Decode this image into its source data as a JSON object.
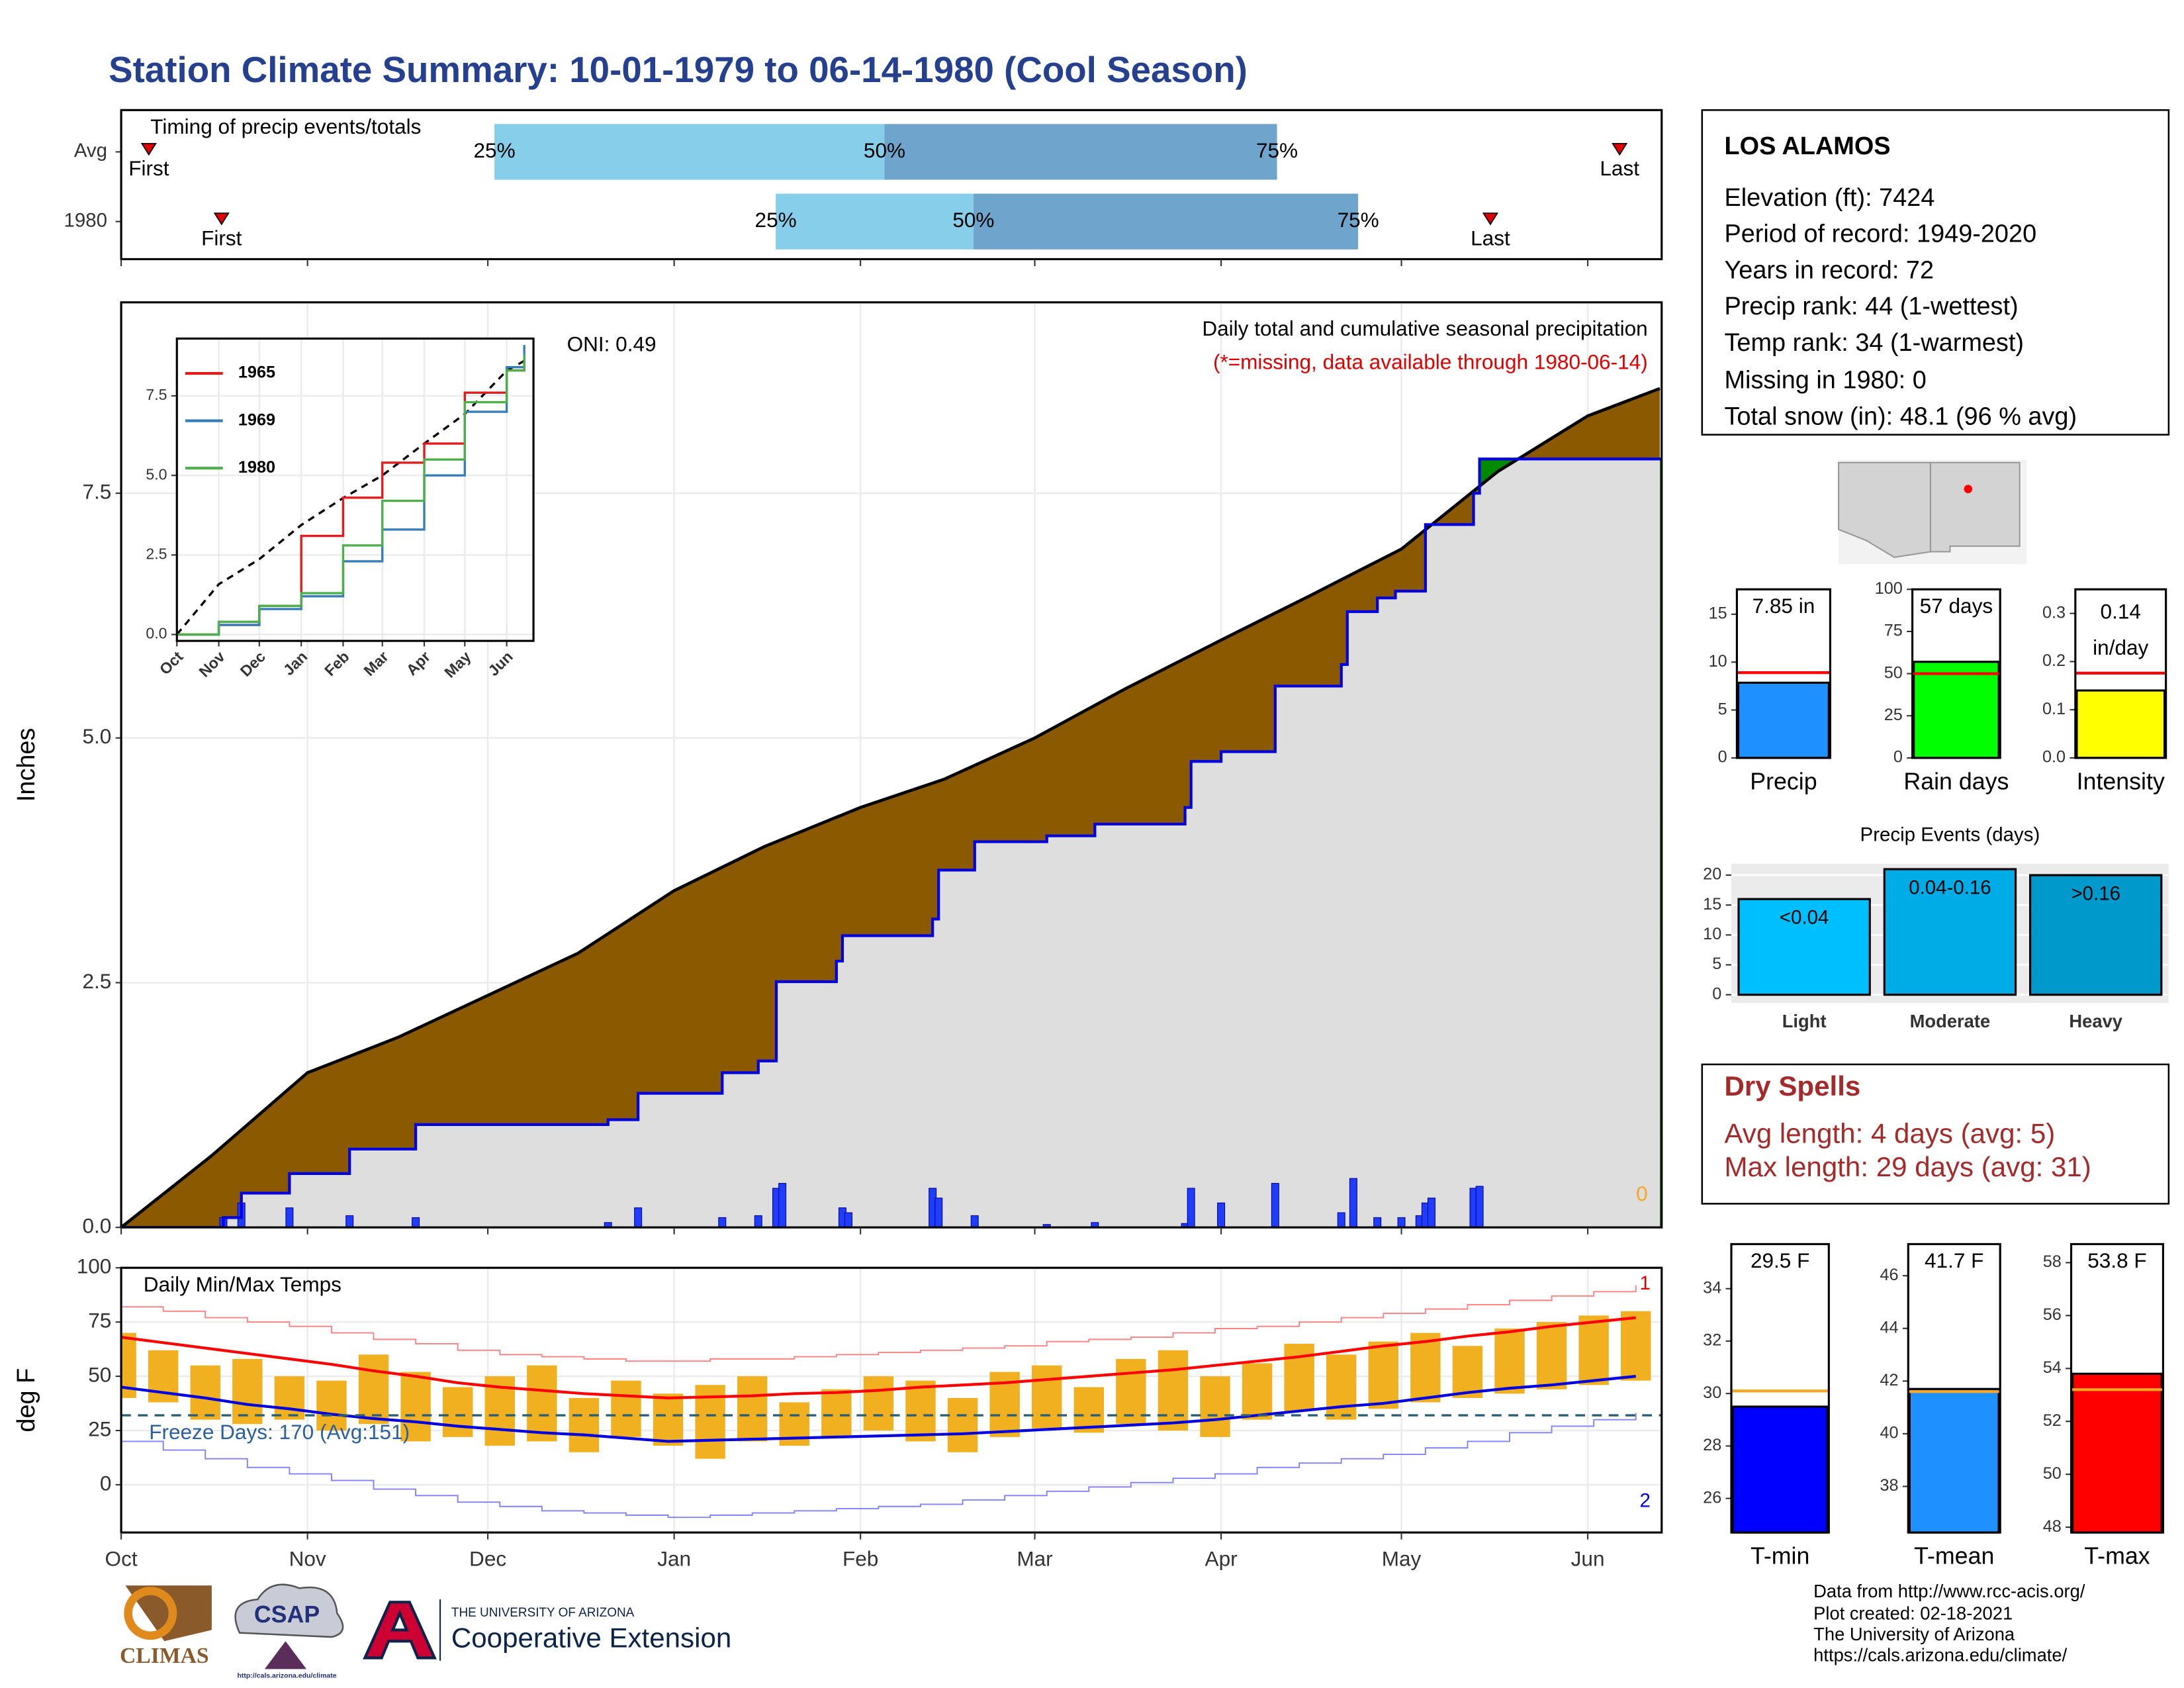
{
  "title": "Station Climate Summary: 10-01-1979 to 06-14-1980 (Cool Season)",
  "chart_data": [
    {
      "type": "timing",
      "title": "Timing of precip events/totals",
      "xlim": [
        0,
        256.3
      ],
      "xticks": [
        0,
        31,
        61,
        92,
        123,
        152,
        183,
        213,
        244
      ],
      "labels": {
        "q25": "25%",
        "q50": "50%",
        "q75": "75%",
        "first": "First",
        "last": "Last"
      },
      "colors": [
        "#87ceeb",
        "#6fa5cc"
      ],
      "marker_color": "#e00000",
      "rows": [
        {
          "name": "Avg",
          "first": 4.6,
          "q25": 62.1,
          "q50": 127,
          "q75": 192.3,
          "last": 249.3
        },
        {
          "name": "1980",
          "first": 16.7,
          "q25": 108.9,
          "q50": 141.8,
          "q75": 205.8,
          "last": 227.8
        }
      ]
    },
    {
      "type": "area",
      "title": "Daily total and cumulative seasonal precipitation",
      "subtitle": "(*=missing, data available through 1980-06-14)",
      "annotation": "ONI: 0.49",
      "corner_label": "0",
      "ylabel": "Inches",
      "grid": true,
      "xlim": [
        0,
        256.3
      ],
      "xticks": [
        0,
        31,
        61,
        92,
        123,
        152,
        183,
        213,
        244
      ],
      "ylim": [
        0,
        9.45
      ],
      "yticks": [
        {
          "value": 0,
          "label": "0.0"
        },
        {
          "value": 2.5,
          "label": "2.5"
        },
        {
          "value": 5,
          "label": "5.0"
        },
        {
          "value": 7.5,
          "label": "7.5"
        }
      ],
      "fill_colors": {
        "below": "#dedede",
        "deficit": "#8b5a00",
        "surplus": "#008a00"
      },
      "series": [
        {
          "color": "#000000",
          "step": false,
          "x": [
            0,
            15,
            31,
            46,
            61,
            76,
            92,
            107,
            123,
            137,
            152,
            167,
            183,
            198,
            213,
            229,
            244,
            256
          ],
          "values": [
            0,
            0.73,
            1.58,
            1.94,
            2.37,
            2.8,
            3.44,
            3.89,
            4.29,
            4.58,
            5.0,
            5.5,
            6.0,
            6.46,
            6.93,
            7.72,
            8.29,
            8.57
          ]
        },
        {
          "color": "#0000e0",
          "step": true,
          "x": [
            0,
            17,
            20,
            28,
            38,
            49,
            81,
            86,
            100,
            106,
            109,
            119,
            120,
            135,
            136,
            142,
            154,
            162,
            177,
            178,
            183,
            192,
            203,
            204,
            209,
            212,
            217,
            225,
            226,
            257
          ],
          "values": [
            0,
            0.1,
            0.35,
            0.55,
            0.8,
            1.05,
            1.1,
            1.37,
            1.58,
            1.7,
            2.51,
            2.72,
            2.98,
            3.15,
            3.65,
            3.94,
            4.0,
            4.12,
            4.29,
            4.76,
            4.86,
            5.53,
            5.75,
            6.29,
            6.43,
            6.5,
            7.18,
            7.5,
            7.85,
            7.85
          ]
        }
      ],
      "bars": {
        "color": "#1f3dff",
        "x": [
          17,
          20,
          28,
          38,
          49,
          81,
          86,
          100,
          106,
          109,
          110,
          120,
          121,
          135,
          136,
          142,
          154,
          162,
          177,
          178,
          183,
          192,
          203,
          205,
          209,
          213,
          216,
          217,
          218,
          225,
          226
        ],
        "values": [
          0.1,
          0.25,
          0.2,
          0.12,
          0.1,
          0.05,
          0.2,
          0.1,
          0.12,
          0.4,
          0.45,
          0.2,
          0.15,
          0.4,
          0.3,
          0.12,
          0.03,
          0.05,
          0.04,
          0.4,
          0.25,
          0.45,
          0.15,
          0.5,
          0.1,
          0.1,
          0.12,
          0.25,
          0.3,
          0.4,
          0.42
        ]
      }
    },
    {
      "type": "line",
      "xlim": [
        0,
        263.8
      ],
      "ylim": [
        -0.2,
        9.3
      ],
      "xticks": [
        {
          "value": 0,
          "label": "Oct"
        },
        {
          "value": 31,
          "label": "Nov"
        },
        {
          "value": 61,
          "label": "Dec"
        },
        {
          "value": 92,
          "label": "Jan"
        },
        {
          "value": 123,
          "label": "Feb"
        },
        {
          "value": 152,
          "label": "Mar"
        },
        {
          "value": 183,
          "label": "Apr"
        },
        {
          "value": 213,
          "label": "May"
        },
        {
          "value": 244,
          "label": "Jun"
        }
      ],
      "yticks": [
        {
          "value": 0,
          "label": "0.0"
        },
        {
          "value": 2.5,
          "label": "2.5"
        },
        {
          "value": 5,
          "label": "5.0"
        },
        {
          "value": 7.5,
          "label": "7.5"
        }
      ],
      "x": [
        0,
        31,
        61,
        92,
        123,
        152,
        183,
        213,
        244,
        257
      ],
      "series": [
        {
          "color": "#000000",
          "dashed": true,
          "values": [
            0,
            1.58,
            2.37,
            3.44,
            4.29,
            5.0,
            6.0,
            6.93,
            8.29,
            8.6
          ]
        },
        {
          "name": "1965",
          "color": "#e41a1c",
          "values": [
            0,
            0.3,
            0.9,
            3.1,
            4.3,
            5.4,
            6.0,
            7.6,
            8.3,
            8.6
          ]
        },
        {
          "name": "1969",
          "color": "#377eb8",
          "values": [
            0,
            0.3,
            0.8,
            1.2,
            2.3,
            3.3,
            5.0,
            7.0,
            8.4,
            9.1
          ]
        },
        {
          "name": "1980",
          "color": "#4daf4a",
          "values": [
            0,
            0.4,
            0.9,
            1.3,
            2.8,
            4.2,
            5.5,
            7.3,
            8.3,
            8.8
          ]
        }
      ]
    },
    {
      "type": "range",
      "title": "Daily Min/Max Temps",
      "annotation": "Freeze Days: 170 (Avg:151)",
      "ylabel": "deg F",
      "high_label": "1",
      "low_label": "2",
      "grid": true,
      "xlim": [
        0,
        256.3
      ],
      "ylim": [
        -22,
        100
      ],
      "yticks": [
        0,
        25,
        50,
        75,
        100
      ],
      "xticks": [
        {
          "value": 0,
          "label": "Oct"
        },
        {
          "value": 31,
          "label": "Nov"
        },
        {
          "value": 61,
          "label": "Dec"
        },
        {
          "value": 92,
          "label": "Jan"
        },
        {
          "value": 123,
          "label": "Feb"
        },
        {
          "value": 152,
          "label": "Mar"
        },
        {
          "value": 183,
          "label": "Apr"
        },
        {
          "value": 213,
          "label": "May"
        },
        {
          "value": 244,
          "label": "Jun"
        }
      ],
      "hline": 32,
      "hline_color": "#2b5f75",
      "x": [
        0,
        7,
        14,
        21,
        28,
        35,
        42,
        49,
        56,
        63,
        70,
        77,
        84,
        91,
        98,
        105,
        112,
        119,
        126,
        133,
        140,
        147,
        154,
        161,
        168,
        175,
        182,
        189,
        196,
        203,
        210,
        217,
        224,
        231,
        238,
        245,
        252
      ],
      "bars": {
        "color": "#f0b020",
        "high": [
          70,
          62,
          55,
          58,
          50,
          48,
          60,
          52,
          45,
          50,
          55,
          40,
          48,
          42,
          46,
          50,
          38,
          44,
          50,
          48,
          40,
          52,
          55,
          45,
          58,
          62,
          50,
          56,
          65,
          60,
          66,
          70,
          64,
          72,
          75,
          78,
          80
        ],
        "low": [
          40,
          38,
          30,
          28,
          30,
          25,
          28,
          20,
          22,
          18,
          20,
          15,
          22,
          18,
          12,
          20,
          18,
          22,
          25,
          20,
          15,
          22,
          26,
          24,
          28,
          25,
          22,
          30,
          34,
          30,
          35,
          38,
          40,
          42,
          44,
          46,
          48
        ]
      },
      "series": [
        {
          "color": "#ff0000",
          "values": [
            68,
            65.5,
            63,
            60.5,
            58,
            55.5,
            52.5,
            50,
            47,
            45,
            43.5,
            42,
            41,
            40,
            40.5,
            41,
            42,
            42.5,
            43.5,
            45,
            46,
            47,
            48.5,
            50,
            51.5,
            53,
            55,
            57,
            59,
            61.5,
            64,
            66,
            68.5,
            70.5,
            73,
            75,
            77
          ]
        },
        {
          "color": "#0000e0",
          "values": [
            45,
            42.5,
            40,
            37,
            35,
            32.5,
            30.5,
            29,
            27,
            25.5,
            24,
            23,
            21.5,
            20,
            20.5,
            21,
            21.5,
            22,
            22.5,
            23,
            23.5,
            24.5,
            25.5,
            26.5,
            27.5,
            28.5,
            30,
            32,
            34,
            36,
            37.5,
            40,
            42.5,
            44.5,
            46,
            48,
            50
          ]
        },
        {
          "color": "#ff8080",
          "values": [
            82,
            80,
            77,
            75,
            73,
            70,
            67,
            65,
            62,
            60,
            59,
            58,
            57,
            57,
            58,
            58,
            59,
            60,
            61,
            62,
            63,
            64,
            66,
            67,
            68,
            70,
            72,
            73,
            75,
            77,
            79,
            81,
            83,
            85,
            87,
            89,
            92
          ]
        },
        {
          "color": "#8080ff",
          "values": [
            20,
            16,
            12,
            8,
            5,
            2,
            -2,
            -5,
            -8,
            -10,
            -12,
            -13,
            -14,
            -15,
            -14,
            -13,
            -12,
            -11,
            -10,
            -9,
            -7,
            -5,
            -3,
            -1,
            1,
            3,
            5,
            8,
            10,
            12,
            14,
            17,
            20,
            24,
            27,
            30,
            33
          ]
        }
      ]
    },
    {
      "type": "bar",
      "categories": [
        "Precip"
      ],
      "values": [
        7.85
      ],
      "value_labels": [
        "7.85 in"
      ],
      "color": "#1e90ff",
      "avg": 8.9,
      "avg_color": "#ff0000",
      "ylim": [
        0,
        17.6
      ],
      "yticks": [
        0,
        5,
        10,
        15
      ]
    },
    {
      "type": "bar",
      "categories": [
        "Rain days"
      ],
      "values": [
        57
      ],
      "value_labels": [
        "57 days"
      ],
      "color": "#00ff00",
      "avg": 50,
      "avg_color": "#ff0000",
      "ylim": [
        0,
        100
      ],
      "yticks": [
        0,
        25,
        50,
        75,
        100
      ]
    },
    {
      "type": "bar",
      "categories": [
        "Intensity"
      ],
      "values": [
        0.14
      ],
      "value_units": "in/day",
      "color": "#ffff00",
      "avg": 0.176,
      "avg_color": "#ff0000",
      "ylim": [
        0,
        0.35
      ],
      "yticks": [
        {
          "value": 0,
          "label": "0.0"
        },
        0.1,
        0.2,
        0.3
      ]
    },
    {
      "type": "bar",
      "title": "Precip Events (days)",
      "categories": [
        "Light",
        "Moderate",
        "Heavy"
      ],
      "values": [
        16,
        21,
        20
      ],
      "bin_labels": [
        "<0.04",
        "0.04-0.16",
        ">0.16"
      ],
      "colors": [
        "#00bfff",
        "#00ace6",
        "#0099cc"
      ],
      "ylim": [
        -1.4,
        21.9
      ],
      "yticks": [
        0,
        5,
        10,
        15,
        20
      ],
      "grid": true
    },
    {
      "type": "bar",
      "categories": [
        "T-min"
      ],
      "values": [
        29.5
      ],
      "value_labels": [
        "29.5 F"
      ],
      "color": "#0000ff",
      "avg": 30.1,
      "avg_color": "#f5a623",
      "ylim": [
        24.7,
        35.7
      ],
      "yticks": [
        26,
        28,
        30,
        32,
        34
      ]
    },
    {
      "type": "bar",
      "categories": [
        "T-mean"
      ],
      "values": [
        41.7
      ],
      "value_labels": [
        "41.7 F"
      ],
      "color": "#1e90ff",
      "avg": 41.6,
      "avg_color": "#f5a623",
      "ylim": [
        36.25,
        47.2
      ],
      "yticks": [
        38,
        40,
        42,
        44,
        46
      ]
    },
    {
      "type": "bar",
      "categories": [
        "T-max"
      ],
      "values": [
        53.8
      ],
      "value_labels": [
        "53.8 F"
      ],
      "color": "#ff0000",
      "avg": 53.2,
      "avg_color": "#f5a623",
      "ylim": [
        47.8,
        58.7
      ],
      "yticks": [
        48,
        50,
        52,
        54,
        56,
        58
      ]
    }
  ],
  "info": {
    "station": "LOS ALAMOS",
    "lines": [
      "Elevation (ft): 7424",
      "Period of record: 1949-2020",
      "Years in record: 72",
      "Precip rank: 44 (1-wettest)",
      "Temp rank: 34 (1-warmest)",
      "Missing in 1980: 0",
      "Total snow (in): 48.1 (96 % avg)"
    ]
  },
  "dry_spells": {
    "title": "Dry Spells",
    "lines": [
      "Avg length: 4 days (avg: 5)",
      "Max length: 29 days (avg: 31)"
    ]
  },
  "footer": [
    "Data from http://www.rcc-acis.org/",
    "Plot created: 02-18-2021",
    "The University of Arizona",
    "https://cals.arizona.edu/climate/"
  ],
  "logos": {
    "climas": "CLIMAS",
    "csap": "CSAP",
    "csap_url": "http://cals.arizona.edu/climate",
    "ua_name": "THE UNIVERSITY OF ARIZONA",
    "ua_ext": "Cooperative Extension"
  }
}
